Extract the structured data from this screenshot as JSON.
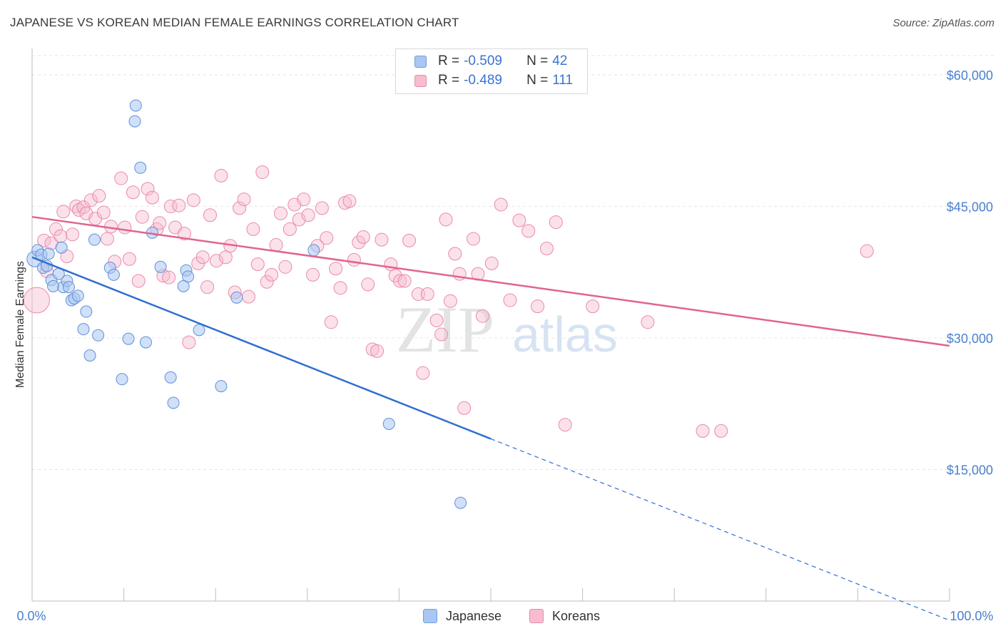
{
  "title": "JAPANESE VS KOREAN MEDIAN FEMALE EARNINGS CORRELATION CHART",
  "source": "Source: ZipAtlas.com",
  "watermark": {
    "zip": "ZIP",
    "atlas": "atlas"
  },
  "legend": {
    "rows": [
      {
        "r_label": "R = ",
        "r_value": "-0.509",
        "n_label": "N = ",
        "n_value": "42",
        "color": "#a9c7f2",
        "border": "#6f9ee0"
      },
      {
        "r_label": "R = ",
        "r_value": "-0.489",
        "n_label": "N = ",
        "n_value": "111",
        "color": "#f7bcd0",
        "border": "#e98aab"
      }
    ]
  },
  "bottom_legend": {
    "japanese": "Japanese",
    "koreans": "Koreans"
  },
  "colors": {
    "japanese": "#a9c7f2",
    "japanese_line": "#2f6fd0",
    "koreans": "#f7bcd0",
    "koreans_line": "#e0648f",
    "tick": "#4a7fd0"
  },
  "chart_data": {
    "type": "scatter",
    "title": "JAPANESE VS KOREAN MEDIAN FEMALE EARNINGS CORRELATION CHART",
    "xlabel": "",
    "ylabel": "Median Female Earnings",
    "xlim": [
      0,
      100
    ],
    "ylim": [
      0,
      63000
    ],
    "x_tick_labels": [
      "0.0%",
      "100.0%"
    ],
    "y_ticks": [
      15000,
      30000,
      45000,
      60000
    ],
    "y_tick_labels": [
      "$15,000",
      "$30,000",
      "$45,000",
      "$60,000"
    ],
    "series": [
      {
        "name": "Japanese",
        "r": -0.509,
        "n": 42,
        "trend": {
          "x0": 0,
          "y0": 39200,
          "x1": 50,
          "y1": 18500,
          "dash_to_x": 100
        },
        "points": [
          [
            0.3,
            39000
          ],
          [
            0.6,
            40000
          ],
          [
            1.0,
            39500
          ],
          [
            1.2,
            38000
          ],
          [
            1.6,
            38200
          ],
          [
            1.8,
            39600
          ],
          [
            2.1,
            36600
          ],
          [
            2.3,
            35900
          ],
          [
            3.2,
            40300
          ],
          [
            3.4,
            35800
          ],
          [
            3.8,
            36500
          ],
          [
            4.0,
            35800
          ],
          [
            4.3,
            34300
          ],
          [
            4.6,
            34500
          ],
          [
            5.0,
            34800
          ],
          [
            5.6,
            31000
          ],
          [
            5.9,
            33000
          ],
          [
            6.3,
            28000
          ],
          [
            6.8,
            41200
          ],
          [
            7.2,
            30300
          ],
          [
            8.5,
            38000
          ],
          [
            8.9,
            37200
          ],
          [
            9.8,
            25300
          ],
          [
            10.5,
            29900
          ],
          [
            11.2,
            54700
          ],
          [
            11.3,
            56500
          ],
          [
            11.8,
            49400
          ],
          [
            12.4,
            29500
          ],
          [
            13.1,
            42000
          ],
          [
            15.1,
            25500
          ],
          [
            15.4,
            22600
          ],
          [
            14.0,
            38100
          ],
          [
            16.8,
            37700
          ],
          [
            17.0,
            37000
          ],
          [
            16.5,
            35900
          ],
          [
            18.2,
            30900
          ],
          [
            20.6,
            24500
          ],
          [
            22.3,
            34600
          ],
          [
            30.7,
            40000
          ],
          [
            38.9,
            20200
          ],
          [
            46.7,
            11200
          ],
          [
            2.9,
            37300
          ]
        ]
      },
      {
        "name": "Koreans",
        "r": -0.489,
        "n": 111,
        "trend": {
          "x0": 0,
          "y0": 43800,
          "x1": 100,
          "y1": 29100
        },
        "points": [
          [
            0.5,
            34300
          ],
          [
            1.3,
            41100
          ],
          [
            1.6,
            37600
          ],
          [
            2.1,
            40800
          ],
          [
            2.6,
            42400
          ],
          [
            3.1,
            41600
          ],
          [
            3.4,
            44400
          ],
          [
            3.8,
            39300
          ],
          [
            4.4,
            41800
          ],
          [
            4.8,
            45000
          ],
          [
            5.1,
            44600
          ],
          [
            5.6,
            44900
          ],
          [
            5.9,
            44200
          ],
          [
            6.4,
            45700
          ],
          [
            6.9,
            43600
          ],
          [
            7.3,
            46200
          ],
          [
            7.8,
            44300
          ],
          [
            8.2,
            41300
          ],
          [
            8.6,
            42700
          ],
          [
            9.0,
            38700
          ],
          [
            9.7,
            48200
          ],
          [
            10.1,
            42600
          ],
          [
            10.6,
            39000
          ],
          [
            11.0,
            46600
          ],
          [
            11.6,
            36500
          ],
          [
            12.0,
            43800
          ],
          [
            12.6,
            47000
          ],
          [
            13.1,
            46000
          ],
          [
            13.6,
            42400
          ],
          [
            13.9,
            43100
          ],
          [
            14.3,
            37100
          ],
          [
            14.9,
            36900
          ],
          [
            15.1,
            45000
          ],
          [
            15.6,
            42600
          ],
          [
            16.0,
            45100
          ],
          [
            16.6,
            41900
          ],
          [
            17.1,
            29500
          ],
          [
            17.6,
            45700
          ],
          [
            18.1,
            38500
          ],
          [
            18.6,
            39200
          ],
          [
            19.1,
            35800
          ],
          [
            19.4,
            44000
          ],
          [
            20.1,
            38800
          ],
          [
            20.6,
            48500
          ],
          [
            21.1,
            39200
          ],
          [
            21.6,
            40500
          ],
          [
            22.1,
            35200
          ],
          [
            22.6,
            44800
          ],
          [
            23.1,
            45800
          ],
          [
            23.6,
            34700
          ],
          [
            24.1,
            42400
          ],
          [
            24.6,
            38400
          ],
          [
            25.1,
            48900
          ],
          [
            25.6,
            36400
          ],
          [
            26.1,
            37200
          ],
          [
            26.6,
            40600
          ],
          [
            27.1,
            44200
          ],
          [
            27.6,
            38100
          ],
          [
            28.1,
            42400
          ],
          [
            28.6,
            45200
          ],
          [
            29.1,
            43500
          ],
          [
            29.6,
            45800
          ],
          [
            30.1,
            44000
          ],
          [
            30.6,
            37200
          ],
          [
            31.1,
            40500
          ],
          [
            31.6,
            44800
          ],
          [
            32.1,
            41400
          ],
          [
            32.6,
            31800
          ],
          [
            33.1,
            37900
          ],
          [
            33.6,
            35700
          ],
          [
            34.1,
            45400
          ],
          [
            34.6,
            45600
          ],
          [
            35.1,
            38900
          ],
          [
            35.6,
            40900
          ],
          [
            36.1,
            41500
          ],
          [
            36.6,
            36100
          ],
          [
            37.1,
            28700
          ],
          [
            37.6,
            28500
          ],
          [
            38.1,
            41200
          ],
          [
            39.1,
            38400
          ],
          [
            39.6,
            37100
          ],
          [
            40.1,
            36500
          ],
          [
            40.6,
            36500
          ],
          [
            41.1,
            41100
          ],
          [
            42.1,
            35000
          ],
          [
            42.6,
            26000
          ],
          [
            43.1,
            35000
          ],
          [
            44.1,
            32000
          ],
          [
            44.6,
            30400
          ],
          [
            45.1,
            43500
          ],
          [
            45.6,
            34200
          ],
          [
            46.1,
            39600
          ],
          [
            46.6,
            37300
          ],
          [
            47.1,
            22000
          ],
          [
            48.1,
            41300
          ],
          [
            48.6,
            37300
          ],
          [
            49.1,
            32500
          ],
          [
            50.1,
            38500
          ],
          [
            51.1,
            45200
          ],
          [
            52.1,
            34300
          ],
          [
            53.1,
            43400
          ],
          [
            54.1,
            42200
          ],
          [
            55.1,
            33600
          ],
          [
            56.1,
            40200
          ],
          [
            57.1,
            43200
          ],
          [
            58.1,
            20100
          ],
          [
            61.1,
            33600
          ],
          [
            67.1,
            31800
          ],
          [
            73.1,
            19400
          ],
          [
            75.1,
            19400
          ],
          [
            91.0,
            39900
          ]
        ]
      }
    ]
  }
}
